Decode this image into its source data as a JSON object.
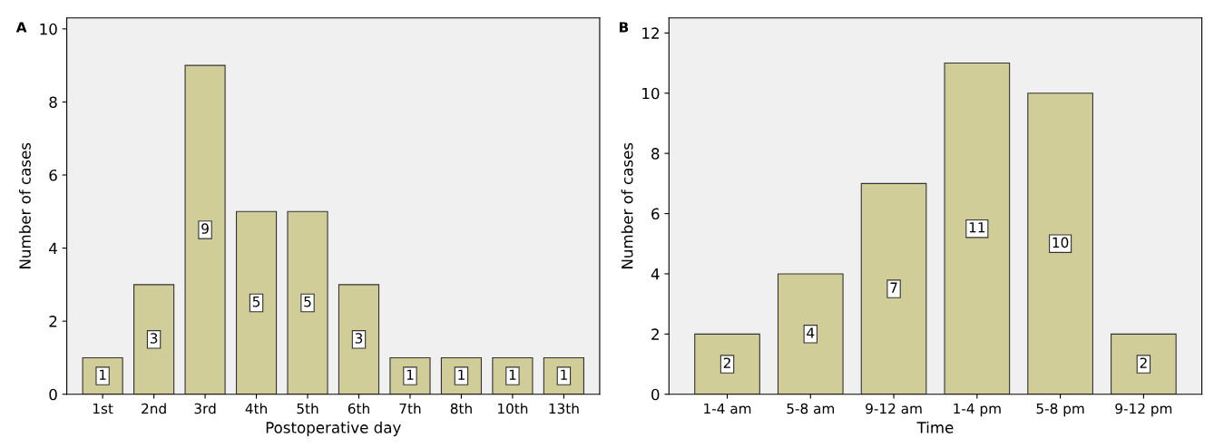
{
  "chart_data": [
    {
      "type": "bar",
      "title": "A",
      "xlabel": "Postoperative day",
      "ylabel": "Number of cases",
      "categories": [
        "1st",
        "2nd",
        "3rd",
        "4th",
        "5th",
        "6th",
        "7th",
        "8th",
        "10th",
        "13th"
      ],
      "values": [
        1,
        3,
        9,
        5,
        5,
        3,
        1,
        1,
        1,
        1
      ],
      "color": "#d1cd99",
      "ylim": [
        0,
        10.3
      ],
      "yticks": [
        0,
        2,
        4,
        6,
        8,
        10
      ],
      "data_labels": true,
      "grid": false
    },
    {
      "type": "bar",
      "title": "B",
      "xlabel": "Time",
      "ylabel": "Number of cases",
      "categories": [
        "1-4 am",
        "5-8 am",
        "9-12 am",
        "1-4 pm",
        "5-8 pm",
        "9-12 pm"
      ],
      "values": [
        2,
        4,
        7,
        11,
        10,
        2
      ],
      "color": "#d1cd99",
      "ylim": [
        0,
        12.5
      ],
      "yticks": [
        0,
        2,
        4,
        6,
        8,
        10,
        12
      ],
      "data_labels": true,
      "grid": false
    }
  ]
}
